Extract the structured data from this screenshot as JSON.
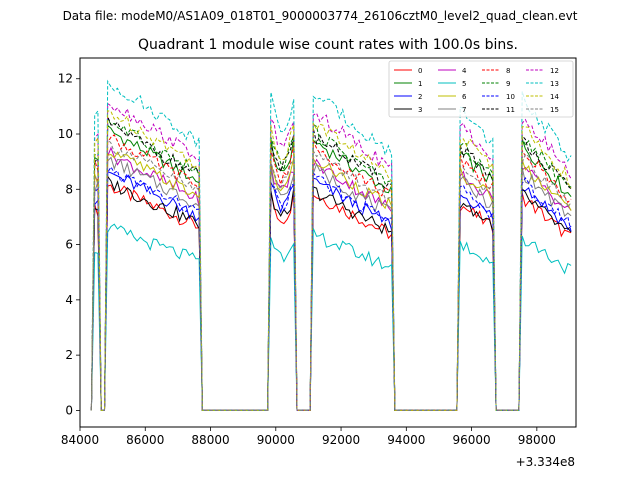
{
  "chart_data": {
    "type": "line",
    "suptitle": "Data file: modeM0/AS1A09_018T01_9000003774_26106cztM0_level2_quad_clean.evt",
    "title": "Quadrant 1 module wise count rates with 100.0s bins.",
    "xlabel": "",
    "ylabel": "",
    "x_offset_label": "+3.334e8",
    "xlim": [
      84000,
      99200
    ],
    "ylim": [
      -0.6,
      12.75
    ],
    "x_ticks": [
      84000,
      86000,
      88000,
      90000,
      92000,
      94000,
      96000,
      98000
    ],
    "x_tick_labels": [
      "84000",
      "86000",
      "88000",
      "90000",
      "92000",
      "94000",
      "96000",
      "98000"
    ],
    "y_ticks": [
      0,
      2,
      4,
      6,
      8,
      10,
      12
    ],
    "y_tick_labels": [
      "0",
      "2",
      "4",
      "6",
      "8",
      "10",
      "12"
    ],
    "legend_position": "top-right",
    "segments": [
      {
        "start": 84450,
        "end": 84550
      },
      {
        "start": 84850,
        "end": 87700
      },
      {
        "start": 89850,
        "end": 90550
      },
      {
        "start": 91100,
        "end": 93550
      },
      {
        "start": 95650,
        "end": 96650
      },
      {
        "start": 97550,
        "end": 99050
      }
    ],
    "series": [
      {
        "name": "0",
        "color": "#ff0000",
        "dash": "solid",
        "level": 6.9
      },
      {
        "name": "1",
        "color": "#008000",
        "dash": "solid",
        "level": 8.6
      },
      {
        "name": "2",
        "color": "#0000ff",
        "dash": "solid",
        "level": 7.3
      },
      {
        "name": "3",
        "color": "#000000",
        "dash": "solid",
        "level": 7.0
      },
      {
        "name": "4",
        "color": "#bf00bf",
        "dash": "solid",
        "level": 7.9
      },
      {
        "name": "5",
        "color": "#00bfbf",
        "dash": "solid",
        "level": 5.6
      },
      {
        "name": "6",
        "color": "#bfbf00",
        "dash": "solid",
        "level": 8.0
      },
      {
        "name": "7",
        "color": "#808080",
        "dash": "solid",
        "level": 7.7
      },
      {
        "name": "8",
        "color": "#ff0000",
        "dash": "dashed",
        "level": 8.4
      },
      {
        "name": "9",
        "color": "#008000",
        "dash": "dashed",
        "level": 8.9
      },
      {
        "name": "10",
        "color": "#0000ff",
        "dash": "dashed",
        "level": 7.4
      },
      {
        "name": "11",
        "color": "#000000",
        "dash": "dashed",
        "level": 8.8
      },
      {
        "name": "12",
        "color": "#bf00bf",
        "dash": "dashed",
        "level": 9.5
      },
      {
        "name": "13",
        "color": "#00bfbf",
        "dash": "dashed",
        "level": 10.1
      },
      {
        "name": "14",
        "color": "#bfbf00",
        "dash": "dashed",
        "level": 9.2
      },
      {
        "name": "15",
        "color": "#808080",
        "dash": "dashed",
        "level": 8.2
      }
    ]
  }
}
